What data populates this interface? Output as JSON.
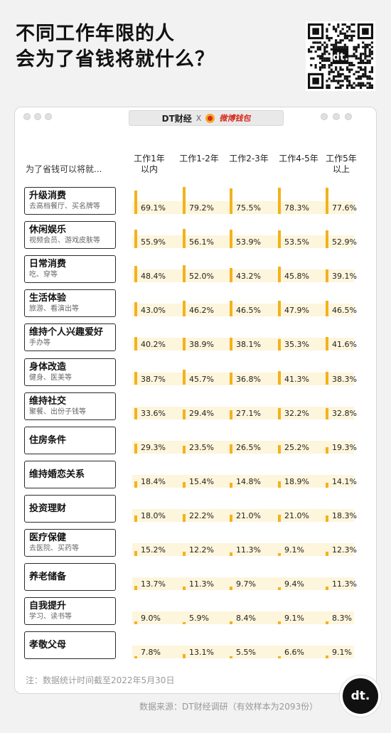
{
  "title_lines": [
    "不同工作年限的人",
    "会为了省钱将就什么？"
  ],
  "brand": {
    "dt": "DT财经",
    "separator": "X",
    "partner": "微博钱包"
  },
  "badge_text": "dt.",
  "note": "注：数据统计时间截至2022年5月30日",
  "source": "数据来源：DT财经调研（有效样本为2093份）",
  "colors": {
    "bar": "#f3b21c",
    "band": "#fdf5dc"
  },
  "chart_data": {
    "type": "bar",
    "row_header": "为了省钱可以将就...",
    "columns": [
      {
        "line1": "工作1年",
        "line2": "以内"
      },
      {
        "line1": "工作1-2年",
        "line2": ""
      },
      {
        "line1": "工作2-3年",
        "line2": ""
      },
      {
        "line1": "工作4-5年",
        "line2": ""
      },
      {
        "line1": "工作5年",
        "line2": "以上"
      }
    ],
    "ylim": [
      0,
      100
    ],
    "categories": [
      {
        "name": "升级消费",
        "sub": "去高档餐厅、买名牌等",
        "values": [
          69.1,
          79.2,
          75.5,
          78.3,
          77.6
        ],
        "labels": [
          "69.1%",
          "79.2%",
          "75.5%",
          "78.3%",
          "77.6%"
        ]
      },
      {
        "name": "休闲娱乐",
        "sub": "视频会员、游戏皮肤等",
        "values": [
          55.9,
          56.1,
          53.9,
          53.5,
          52.9
        ],
        "labels": [
          "55.9%",
          "56.1%",
          "53.9%",
          "53.5%",
          "52.9%"
        ]
      },
      {
        "name": "日常消费",
        "sub": "吃、穿等",
        "values": [
          48.4,
          52.0,
          43.2,
          45.8,
          39.1
        ],
        "labels": [
          "48.4%",
          "52.0%",
          "43.2%",
          "45.8%",
          "39.1%"
        ]
      },
      {
        "name": "生活体验",
        "sub": "旅游、看演出等",
        "values": [
          43.0,
          46.2,
          46.5,
          47.9,
          46.5
        ],
        "labels": [
          "43.0%",
          "46.2%",
          "46.5%",
          "47.9%",
          "46.5%"
        ]
      },
      {
        "name": "维持个人兴趣爱好",
        "sub": "手办等",
        "values": [
          40.2,
          38.9,
          38.1,
          35.3,
          41.6
        ],
        "labels": [
          "40.2%",
          "38.9%",
          "38.1%",
          "35.3%",
          "41.6%"
        ]
      },
      {
        "name": "身体改造",
        "sub": "健身、医美等",
        "values": [
          38.7,
          45.7,
          36.8,
          41.3,
          38.3
        ],
        "labels": [
          "38.7%",
          "45.7%",
          "36.8%",
          "41.3%",
          "38.3%"
        ]
      },
      {
        "name": "维持社交",
        "sub": "聚餐、出份子钱等",
        "values": [
          33.6,
          29.4,
          27.1,
          32.2,
          32.8
        ],
        "labels": [
          "33.6%",
          "29.4%",
          "27.1%",
          "32.2%",
          "32.8%"
        ]
      },
      {
        "name": "住房条件",
        "sub": "",
        "values": [
          29.3,
          23.5,
          26.5,
          25.2,
          19.3
        ],
        "labels": [
          "29.3%",
          "23.5%",
          "26.5%",
          "25.2%",
          "19.3%"
        ]
      },
      {
        "name": "维持婚恋关系",
        "sub": "",
        "values": [
          18.4,
          15.4,
          14.8,
          18.9,
          14.1
        ],
        "labels": [
          "18.4%",
          "15.4%",
          "14.8%",
          "18.9%",
          "14.1%"
        ]
      },
      {
        "name": "投资理财",
        "sub": "",
        "values": [
          18.0,
          22.2,
          21.0,
          21.0,
          18.3
        ],
        "labels": [
          "18.0%",
          "22.2%",
          "21.0%",
          "21.0%",
          "18.3%"
        ]
      },
      {
        "name": "医疗保健",
        "sub": "去医院、买药等",
        "values": [
          15.2,
          12.2,
          11.3,
          9.1,
          12.3
        ],
        "labels": [
          "15.2%",
          "12.2%",
          "11.3%",
          "9.1%",
          "12.3%"
        ]
      },
      {
        "name": "养老储备",
        "sub": "",
        "values": [
          13.7,
          11.3,
          9.7,
          9.4,
          11.3
        ],
        "labels": [
          "13.7%",
          "11.3%",
          "9.7%",
          "9.4%",
          "11.3%"
        ]
      },
      {
        "name": "自我提升",
        "sub": "学习、读书等",
        "values": [
          9.0,
          5.9,
          8.4,
          9.1,
          8.3
        ],
        "labels": [
          "9.0%",
          "5.9%",
          "8.4%",
          "9.1%",
          "8.3%"
        ]
      },
      {
        "name": "孝敬父母",
        "sub": "",
        "values": [
          7.8,
          13.1,
          5.5,
          6.6,
          9.1
        ],
        "labels": [
          "7.8%",
          "13.1%",
          "5.5%",
          "6.6%",
          "9.1%"
        ]
      }
    ]
  }
}
